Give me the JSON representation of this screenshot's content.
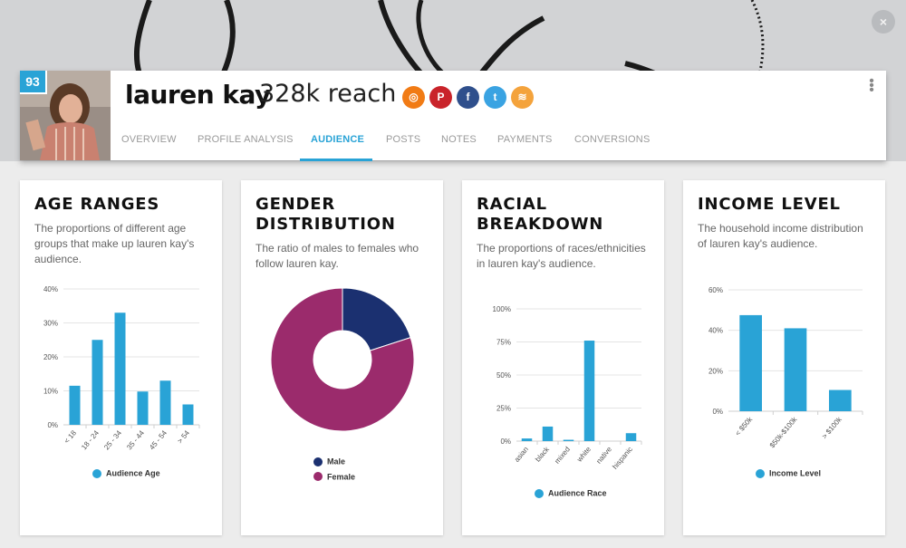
{
  "colors": {
    "accent": "#29a3d6",
    "male": "#1b3070",
    "female": "#9b2b6c",
    "instagram": "#f17b15",
    "pinterest": "#c9232a",
    "facebook": "#2f4f8c",
    "twitter": "#3aa3e2",
    "rss": "#f4a33c"
  },
  "close_icon": "×",
  "profile": {
    "score": "93",
    "name": "lauren kay",
    "reach": "328k reach",
    "socials": [
      {
        "icon": "instagram-icon",
        "glyph": "◎"
      },
      {
        "icon": "pinterest-icon",
        "glyph": "P"
      },
      {
        "icon": "facebook-icon",
        "glyph": "f"
      },
      {
        "icon": "twitter-icon",
        "glyph": "t"
      },
      {
        "icon": "rss-icon",
        "glyph": "≋"
      }
    ],
    "menu_glyph": "⋮"
  },
  "tabs": [
    "OVERVIEW",
    "PROFILE ANALYSIS",
    "AUDIENCE",
    "POSTS",
    "NOTES",
    "PAYMENTS",
    "CONVERSIONS"
  ],
  "active_tab": "AUDIENCE",
  "cards": {
    "age": {
      "title": "AGE RANGES",
      "description": "The proportions of different age groups that make up lauren kay's audience."
    },
    "gender": {
      "title": "GENDER DISTRIBUTION",
      "description": "The ratio of males to females who follow lauren kay."
    },
    "race": {
      "title": "RACIAL BREAKDOWN",
      "description": "The proportions of races/ethnicities in lauren kay's audience."
    },
    "income": {
      "title": "INCOME LEVEL",
      "description": "The household income distribution of lauren kay's audience."
    }
  },
  "chart_data": [
    {
      "type": "bar",
      "id": "age",
      "categories": [
        "< 18",
        "18 - 24",
        "25 - 34",
        "35 - 44",
        "45 - 54",
        "> 54"
      ],
      "series": [
        {
          "name": "Audience Age",
          "values": [
            11.5,
            25,
            33,
            9.8,
            13,
            6
          ]
        }
      ],
      "ylim": [
        0,
        40
      ],
      "yticks": [
        "0%",
        "10%",
        "20%",
        "30%",
        "40%"
      ],
      "ytick_values": [
        0,
        10,
        20,
        30,
        40
      ],
      "grid": true,
      "legend": "bottom"
    },
    {
      "type": "pie",
      "id": "gender",
      "labels": [
        "Male",
        "Female"
      ],
      "values": [
        20,
        80
      ],
      "donut": true,
      "legend": "bottom"
    },
    {
      "type": "bar",
      "id": "race",
      "categories": [
        "asian",
        "black",
        "mixed",
        "white",
        "native",
        "hispanic"
      ],
      "series": [
        {
          "name": "Audience Race",
          "values": [
            2,
            11,
            1,
            76,
            0,
            6
          ]
        }
      ],
      "ylim": [
        0,
        100
      ],
      "yticks": [
        "0%",
        "25%",
        "50%",
        "75%",
        "100%"
      ],
      "ytick_values": [
        0,
        25,
        50,
        75,
        100
      ],
      "grid": true,
      "legend": "bottom"
    },
    {
      "type": "bar",
      "id": "income",
      "categories": [
        "< $50k",
        "$50k-$100k",
        "> $100k"
      ],
      "series": [
        {
          "name": "Income Level",
          "values": [
            47.5,
            41,
            10.5
          ]
        }
      ],
      "ylim": [
        0,
        60
      ],
      "yticks": [
        "0%",
        "20%",
        "40%",
        "60%"
      ],
      "ytick_values": [
        0,
        20,
        40,
        60
      ],
      "grid": true,
      "legend": "bottom"
    }
  ]
}
